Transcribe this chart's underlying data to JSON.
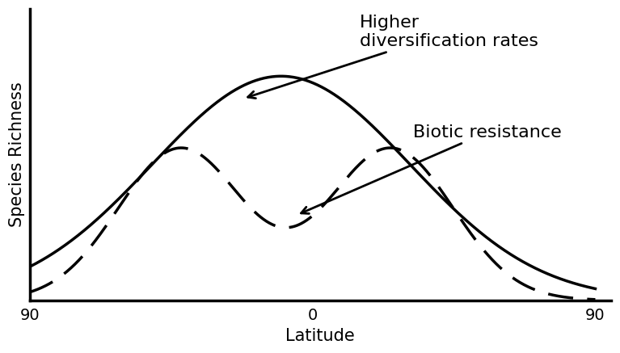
{
  "xlabel": "Latitude",
  "ylabel": "Species Richness",
  "xtick_labels": [
    "90",
    "0",
    "90"
  ],
  "xtick_positions": [
    -90,
    0,
    90
  ],
  "xlim": [
    -90,
    95
  ],
  "ylim": [
    0,
    1.3
  ],
  "solid_label": "Higher\ndiversification rates",
  "dashed_label": "Biotic resistance",
  "line_color": "#000000",
  "background_color": "#ffffff",
  "linewidth_solid": 2.5,
  "linewidth_dashed": 2.5,
  "fontsize_label": 15,
  "fontsize_axis": 14,
  "fontsize_annot": 16
}
